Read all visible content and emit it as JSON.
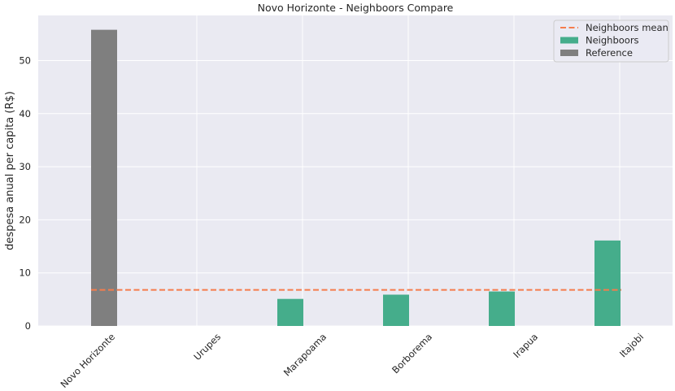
{
  "chart_data": {
    "type": "bar",
    "title": "Novo Horizonte - Neighboors Compare",
    "xlabel": "",
    "ylabel": "despesa anual per capita (R$)",
    "categories": [
      "Novo Horizonte",
      "Urupes",
      "Marapoama",
      "Borborema",
      "Irapua",
      "Itajobi"
    ],
    "ylim": [
      0,
      58.5
    ],
    "yticks": [
      0,
      10,
      20,
      30,
      40,
      50
    ],
    "grid": true,
    "legend_position": "top-right",
    "series": [
      {
        "name": "Reference",
        "color": "#7f7f7f",
        "values": [
          55.8,
          null,
          null,
          null,
          null,
          null
        ]
      },
      {
        "name": "Neighboors",
        "color": "#45ad8b",
        "values": [
          null,
          0,
          5.1,
          5.9,
          6.5,
          16.1
        ]
      }
    ],
    "mean_line": {
      "name": "Neighboors mean",
      "value": 6.8,
      "color": "#f57c4c"
    },
    "legend": [
      "Neighboors mean",
      "Neighboors",
      "Reference"
    ]
  }
}
